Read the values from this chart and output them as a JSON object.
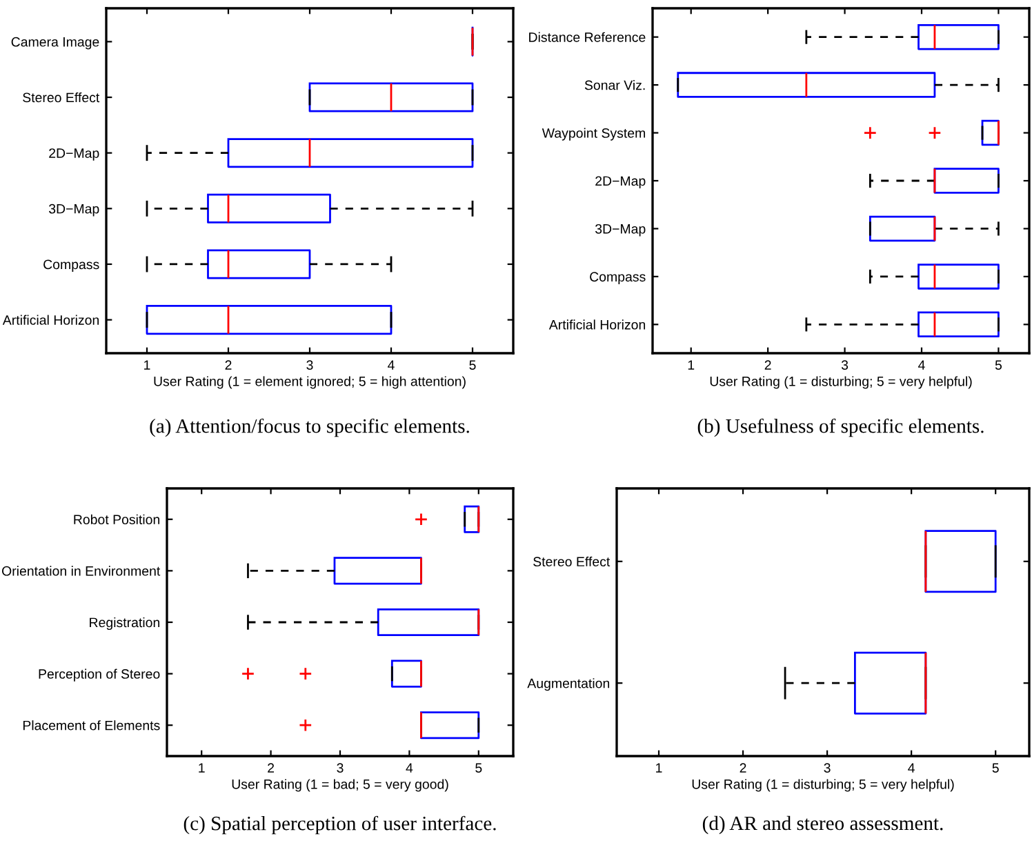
{
  "chart_data": [
    {
      "type": "box",
      "orientation": "horizontal",
      "title": "(a) Attention/focus to specific elements.",
      "xlabel": "User Rating (1 = element ignored; 5 = high attention)",
      "categories": [
        "Camera Image",
        "Stereo Effect",
        "2D−Map",
        "3D−Map",
        "Compass",
        "Artificial Horizon"
      ],
      "xlim": [
        0.5,
        5.5
      ],
      "xticks": [
        1,
        2,
        3,
        4,
        5
      ],
      "grid": false,
      "series": [
        {
          "color": "#0000ff",
          "boxes": [
            {
              "low": 5,
              "q1": 5,
              "median": 5,
              "q3": 5,
              "high": 5
            },
            {
              "low": 3,
              "q1": 3,
              "median": 4,
              "q3": 5,
              "high": 5
            },
            {
              "low": 1,
              "q1": 2,
              "median": 3,
              "q3": 5,
              "high": 5
            },
            {
              "low": 1,
              "q1": 1.75,
              "median": 2,
              "q3": 3.25,
              "high": 5
            },
            {
              "low": 1,
              "q1": 1.75,
              "median": 2,
              "q3": 3,
              "high": 4
            },
            {
              "low": 1,
              "q1": 1,
              "median": 2,
              "q3": 4,
              "high": 4
            }
          ]
        }
      ]
    },
    {
      "type": "box",
      "orientation": "horizontal",
      "title": "(b) Usefulness of specific elements.",
      "xlabel": "User Rating (1 = disturbing; 5 = very helpful)",
      "categories": [
        "Distance Reference",
        "Sonar Viz.",
        "Waypoint System",
        "2D−Map",
        "3D−Map",
        "Compass",
        "Artificial Horizon"
      ],
      "xlim": [
        0.5,
        5.4
      ],
      "xticks": [
        1,
        2,
        3,
        4,
        5
      ],
      "grid": false,
      "series": [
        {
          "color": "#0000ff",
          "boxes": [
            {
              "low": 2.5,
              "q1": 3.96,
              "median": 4.17,
              "q3": 5,
              "high": 5
            },
            {
              "low": 0.83,
              "q1": 0.83,
              "median": 2.5,
              "q3": 4.17,
              "high": 5
            },
            {
              "low": 4.79,
              "q1": 4.79,
              "median": 5,
              "q3": 5,
              "high": 5,
              "outliers": [
                3.33,
                4.17
              ]
            },
            {
              "low": 3.33,
              "q1": 4.17,
              "median": 4.17,
              "q3": 5,
              "high": 5
            },
            {
              "low": 3.33,
              "q1": 3.33,
              "median": 4.17,
              "q3": 4.17,
              "high": 5
            },
            {
              "low": 3.33,
              "q1": 3.96,
              "median": 4.17,
              "q3": 5,
              "high": 5
            },
            {
              "low": 2.5,
              "q1": 3.96,
              "median": 4.17,
              "q3": 5,
              "high": 5
            }
          ]
        }
      ]
    },
    {
      "type": "box",
      "orientation": "horizontal",
      "title": "(c) Spatial perception of user interface.",
      "xlabel": "User Rating (1 = bad; 5 = very good)",
      "categories": [
        "Robot Position",
        "Orientation in Environment",
        "Registration",
        "Perception of Stereo",
        "Placement of Elements"
      ],
      "xlim": [
        0.5,
        5.5
      ],
      "xticks": [
        1,
        2,
        3,
        4,
        5
      ],
      "grid": false,
      "series": [
        {
          "color": "#0000ff",
          "boxes": [
            {
              "low": 4.8,
              "q1": 4.8,
              "median": 5,
              "q3": 5,
              "high": 5,
              "outliers": [
                4.17
              ]
            },
            {
              "low": 1.67,
              "q1": 2.92,
              "median": 4.17,
              "q3": 4.17,
              "high": 4.17
            },
            {
              "low": 1.67,
              "q1": 3.55,
              "median": 5,
              "q3": 5,
              "high": 5
            },
            {
              "low": 3.75,
              "q1": 3.75,
              "median": 4.17,
              "q3": 4.17,
              "high": 4.17,
              "outliers": [
                1.67,
                2.5
              ]
            },
            {
              "low": 4.17,
              "q1": 4.17,
              "median": 4.17,
              "q3": 5,
              "high": 5,
              "outliers": [
                2.5
              ]
            }
          ]
        }
      ]
    },
    {
      "type": "box",
      "orientation": "horizontal",
      "title": "(d) AR and stereo assessment.",
      "xlabel": "User Rating (1 = disturbing; 5 = very helpful)",
      "categories": [
        "Stereo Effect",
        "Augmentation"
      ],
      "xlim": [
        0.5,
        5.4
      ],
      "xticks": [
        1,
        2,
        3,
        4,
        5
      ],
      "grid": false,
      "series": [
        {
          "color": "#0000ff",
          "boxes": [
            {
              "low": 4.17,
              "q1": 4.17,
              "median": 4.17,
              "q3": 5,
              "high": 5
            },
            {
              "low": 2.5,
              "q1": 3.33,
              "median": 4.17,
              "q3": 4.17,
              "high": 4.17
            }
          ]
        }
      ]
    }
  ]
}
